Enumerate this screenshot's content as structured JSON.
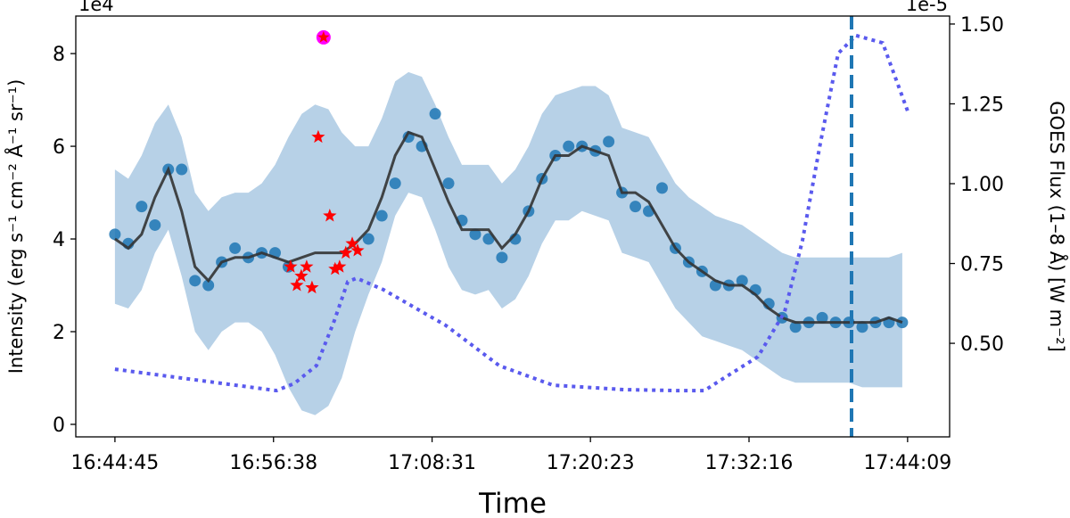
{
  "chart_data": {
    "type": "line",
    "xlabel": "Time",
    "ylabel": "Intensity (erg s⁻¹ cm⁻² Å⁻¹ sr⁻¹)",
    "y2label": "GOES Flux (1–8 Å) [W m⁻²]",
    "y_offset_label": "1e4",
    "y2_offset_label": "1e-5",
    "xlim": [
      "16:41:49",
      "17:47:18"
    ],
    "xticks": [
      "16:44:45",
      "16:56:38",
      "17:08:31",
      "17:20:23",
      "17:32:16",
      "17:44:09"
    ],
    "ylim": [
      -0.27,
      8.81
    ],
    "yticks": [
      0,
      2,
      4,
      6,
      8
    ],
    "y2lim": [
      0.207,
      1.525
    ],
    "y2ticks": [
      {
        "value": 0.5,
        "label": "0.50"
      },
      {
        "value": 0.75,
        "label": "0.75"
      },
      {
        "value": 1.0,
        "label": "1.00"
      },
      {
        "value": 1.25,
        "label": "1.25"
      },
      {
        "value": 1.5,
        "label": "1.50"
      }
    ],
    "x": [
      "16:44:45",
      "16:45:45",
      "16:46:45",
      "16:47:45",
      "16:48:45",
      "16:49:45",
      "16:50:45",
      "16:51:45",
      "16:52:45",
      "16:53:45",
      "16:54:45",
      "16:55:45",
      "16:56:45",
      "16:57:45",
      "16:58:45",
      "16:59:45",
      "17:00:45",
      "17:01:45",
      "17:02:45",
      "17:03:45",
      "17:04:45",
      "17:05:45",
      "17:06:45",
      "17:07:45",
      "17:08:45",
      "17:09:45",
      "17:10:45",
      "17:11:45",
      "17:12:45",
      "17:13:45",
      "17:14:45",
      "17:15:45",
      "17:16:45",
      "17:17:45",
      "17:18:45",
      "17:19:45",
      "17:20:45",
      "17:21:45",
      "17:22:45",
      "17:23:45",
      "17:24:45",
      "17:25:45",
      "17:26:45",
      "17:27:45",
      "17:28:45",
      "17:29:45",
      "17:30:45",
      "17:31:45",
      "17:32:45",
      "17:33:45",
      "17:34:45",
      "17:35:45",
      "17:36:45",
      "17:37:45",
      "17:38:45",
      "17:39:45",
      "17:40:45",
      "17:41:45",
      "17:42:45",
      "17:43:45"
    ],
    "series": [
      {
        "kind": "band",
        "color": "#b7d1e7",
        "lower": [
          2.6,
          2.5,
          2.9,
          3.7,
          4.2,
          3.2,
          2.0,
          1.6,
          2.0,
          2.2,
          2.2,
          2.0,
          1.5,
          0.8,
          0.3,
          0.2,
          0.4,
          1.0,
          2.0,
          2.8,
          3.5,
          4.5,
          5.0,
          4.9,
          4.2,
          3.4,
          2.9,
          2.8,
          2.9,
          2.5,
          2.7,
          3.2,
          3.9,
          4.4,
          4.4,
          4.6,
          4.5,
          4.4,
          3.7,
          3.6,
          3.5,
          3.0,
          2.5,
          2.2,
          1.9,
          1.8,
          1.7,
          1.6,
          1.4,
          1.2,
          1.0,
          0.9,
          0.9,
          0.9,
          0.9,
          0.9,
          0.8,
          0.8,
          0.8,
          0.8
        ],
        "upper": [
          5.5,
          5.3,
          5.8,
          6.5,
          6.9,
          6.2,
          5.0,
          4.6,
          4.9,
          5.0,
          5.0,
          5.2,
          5.6,
          6.2,
          6.7,
          6.9,
          6.8,
          6.3,
          6.0,
          6.0,
          6.6,
          7.4,
          7.6,
          7.5,
          6.9,
          6.2,
          5.6,
          5.6,
          5.6,
          5.2,
          5.5,
          6.0,
          6.7,
          7.1,
          7.2,
          7.3,
          7.3,
          7.1,
          6.4,
          6.3,
          6.2,
          5.7,
          5.2,
          4.9,
          4.7,
          4.5,
          4.4,
          4.3,
          4.1,
          3.9,
          3.7,
          3.6,
          3.6,
          3.6,
          3.6,
          3.6,
          3.6,
          3.6,
          3.6,
          3.7
        ]
      },
      {
        "kind": "scatter",
        "color": "#1f77b4",
        "values": [
          4.1,
          3.9,
          4.7,
          4.3,
          5.5,
          5.5,
          3.1,
          3.0,
          3.5,
          3.8,
          3.6,
          3.7,
          3.7,
          3.4,
          null,
          null,
          null,
          null,
          null,
          4.0,
          4.5,
          5.2,
          6.2,
          6.0,
          6.7,
          5.2,
          4.4,
          4.1,
          4.0,
          3.6,
          4.0,
          4.6,
          5.3,
          5.8,
          6.0,
          6.0,
          5.9,
          6.1,
          5.0,
          4.7,
          4.6,
          5.1,
          3.8,
          3.5,
          3.3,
          3.0,
          3.0,
          3.1,
          2.9,
          2.6,
          2.3,
          2.1,
          2.2,
          2.3,
          2.2,
          2.2,
          2.1,
          2.2,
          2.2,
          2.2
        ]
      },
      {
        "kind": "line",
        "color": "#333333",
        "values": [
          4.0,
          3.8,
          4.1,
          4.9,
          5.5,
          4.6,
          3.4,
          3.1,
          3.5,
          3.6,
          3.6,
          3.7,
          3.6,
          3.5,
          3.6,
          3.7,
          3.7,
          3.7,
          3.9,
          4.2,
          4.9,
          5.8,
          6.3,
          6.2,
          5.5,
          4.8,
          4.2,
          4.2,
          4.2,
          3.8,
          4.1,
          4.6,
          5.3,
          5.8,
          5.8,
          6.0,
          5.9,
          5.8,
          5.0,
          5.0,
          4.8,
          4.3,
          3.8,
          3.5,
          3.3,
          3.1,
          3.0,
          3.0,
          2.8,
          2.5,
          2.3,
          2.2,
          2.2,
          2.2,
          2.2,
          2.2,
          2.2,
          2.2,
          2.3,
          2.2
        ]
      },
      {
        "kind": "star",
        "color": "#ff0000",
        "x": [
          "16:57:55",
          "16:58:23",
          "16:58:43",
          "16:59:07",
          "16:59:31",
          "16:59:59",
          "17:00:51",
          "17:01:15",
          "17:01:35",
          "17:02:03",
          "17:02:32",
          "17:02:56"
        ],
        "values": [
          3.4,
          3.0,
          3.2,
          3.4,
          2.95,
          6.2,
          4.5,
          3.35,
          3.4,
          3.7,
          3.9,
          3.75
        ]
      },
      {
        "kind": "dotted",
        "axis": "y2",
        "color": "#5a5aee",
        "x": [
          "16:44:45",
          "16:56:51",
          "16:58:11",
          "16:59:51",
          "17:01:11",
          "17:02:12",
          "17:02:52",
          "17:04:52",
          "17:09:33",
          "17:13:33",
          "17:17:34",
          "17:22:54",
          "17:26:55",
          "17:28:55",
          "17:30:16",
          "17:32:56",
          "17:34:56",
          "17:36:16",
          "17:37:37",
          "17:38:57",
          "17:40:17",
          "17:42:17",
          "17:44:10"
        ],
        "values": [
          0.419,
          0.352,
          0.374,
          0.43,
          0.57,
          0.693,
          0.704,
          0.668,
          0.556,
          0.43,
          0.369,
          0.355,
          0.352,
          0.352,
          0.388,
          0.458,
          0.598,
          0.821,
          1.128,
          1.408,
          1.464,
          1.441,
          1.226
        ]
      },
      {
        "kind": "highlight",
        "color": "#ff00ff",
        "star_color": "#ff0000",
        "x": [
          "17:00:23"
        ],
        "values": [
          8.35
        ]
      }
    ],
    "vlines": [
      {
        "x": "17:39:57",
        "color": "#1f77b4"
      }
    ]
  }
}
